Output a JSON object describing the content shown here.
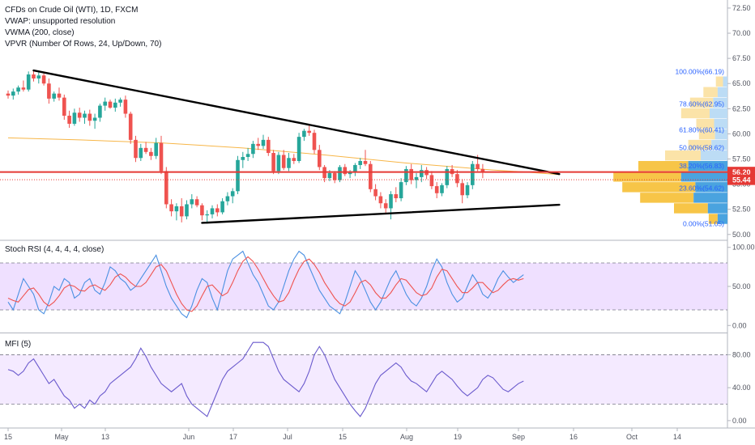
{
  "legend": {
    "title": "CFDs on Crude Oil (WTI), 1D, FXCM",
    "vwap": "VWAP: unsupported resolution",
    "vwma": "VWMA (200, close)",
    "vpvr": "VPVR (Number Of Rows, 24, Up/Down, 70)"
  },
  "indicators": {
    "stoch_title": "Stoch RSI (4, 4, 4, 4, close)",
    "mfi_title": "MFI (5)"
  },
  "colors": {
    "up": "#26a69a",
    "down": "#ef5350",
    "vwma": "#f7b648",
    "trend": "#000000",
    "price_line": "#e53935",
    "fib": "#2962ff",
    "stoch_k": "#4a90e2",
    "stoch_d": "#ef5350",
    "mfi": "#6a5acd",
    "band": "#e9d5ff"
  },
  "price_tags": {
    "current": "56.20",
    "secondary": "55.44"
  },
  "chart_data": [
    {
      "type": "candlestick",
      "title": "CFDs on Crude Oil (WTI), 1D, FXCM",
      "x_ticks": [
        "15",
        "May",
        "13",
        "Jun",
        "17",
        "Jul",
        "15",
        "Aug",
        "19",
        "Sep",
        "16",
        "Oct",
        "14"
      ],
      "y_ticks": [
        "50.00",
        "52.50",
        "55.00",
        "57.50",
        "60.00",
        "62.50",
        "65.00",
        "67.50",
        "70.00",
        "72.50"
      ],
      "ylim": [
        49.5,
        73.3
      ],
      "candles": [
        [
          64.0,
          64.3,
          63.5,
          63.8
        ],
        [
          63.8,
          64.5,
          63.4,
          64.2
        ],
        [
          64.2,
          64.8,
          63.9,
          64.6
        ],
        [
          64.6,
          65.3,
          64.2,
          64.4
        ],
        [
          64.4,
          66.2,
          64.2,
          65.9
        ],
        [
          65.9,
          66.3,
          65.2,
          65.5
        ],
        [
          65.5,
          66.1,
          65.0,
          65.8
        ],
        [
          65.8,
          66.0,
          64.8,
          65.0
        ],
        [
          65.0,
          65.5,
          63.0,
          63.5
        ],
        [
          63.5,
          64.2,
          63.2,
          64.0
        ],
        [
          64.0,
          64.6,
          63.3,
          63.6
        ],
        [
          63.6,
          63.9,
          61.4,
          61.8
        ],
        [
          61.8,
          62.3,
          60.6,
          61.0
        ],
        [
          61.0,
          62.5,
          60.8,
          62.1
        ],
        [
          62.1,
          62.6,
          61.2,
          61.6
        ],
        [
          61.6,
          62.3,
          61.0,
          62.0
        ],
        [
          62.0,
          62.4,
          60.8,
          61.3
        ],
        [
          61.3,
          62.0,
          60.5,
          61.6
        ],
        [
          61.6,
          63.0,
          61.2,
          62.8
        ],
        [
          62.8,
          63.6,
          62.3,
          63.2
        ],
        [
          63.2,
          63.4,
          62.5,
          62.6
        ],
        [
          62.6,
          63.5,
          62.2,
          63.1
        ],
        [
          63.1,
          63.6,
          62.7,
          63.4
        ],
        [
          63.4,
          63.8,
          61.6,
          62.0
        ],
        [
          62.0,
          62.2,
          59.0,
          59.4
        ],
        [
          59.4,
          59.8,
          57.2,
          57.6
        ],
        [
          57.6,
          59.0,
          57.3,
          58.6
        ],
        [
          58.6,
          59.2,
          58.0,
          58.2
        ],
        [
          58.2,
          58.6,
          57.4,
          57.8
        ],
        [
          57.8,
          59.6,
          57.5,
          59.1
        ],
        [
          59.1,
          59.8,
          56.0,
          56.3
        ],
        [
          56.3,
          56.7,
          52.6,
          53.0
        ],
        [
          53.0,
          53.5,
          51.8,
          52.3
        ],
        [
          52.3,
          53.1,
          51.4,
          52.8
        ],
        [
          52.8,
          53.6,
          51.2,
          51.8
        ],
        [
          51.8,
          53.4,
          51.5,
          53.0
        ],
        [
          53.0,
          54.0,
          52.6,
          53.5
        ],
        [
          53.5,
          53.8,
          52.7,
          52.9
        ],
        [
          52.9,
          53.1,
          51.4,
          51.9
        ],
        [
          51.9,
          52.4,
          51.1,
          52.0
        ],
        [
          52.0,
          52.9,
          51.6,
          52.6
        ],
        [
          52.6,
          53.0,
          51.8,
          52.2
        ],
        [
          52.2,
          53.6,
          52.0,
          53.3
        ],
        [
          53.3,
          54.2,
          52.9,
          53.8
        ],
        [
          53.8,
          54.6,
          53.1,
          54.3
        ],
        [
          54.3,
          57.8,
          54.0,
          57.4
        ],
        [
          57.4,
          58.2,
          56.6,
          57.7
        ],
        [
          57.7,
          58.6,
          57.3,
          58.0
        ],
        [
          58.0,
          59.3,
          57.6,
          59.0
        ],
        [
          59.0,
          59.6,
          58.4,
          58.8
        ],
        [
          58.8,
          59.9,
          58.5,
          59.4
        ],
        [
          59.4,
          59.7,
          57.8,
          58.1
        ],
        [
          58.1,
          58.4,
          56.0,
          56.3
        ],
        [
          56.3,
          58.2,
          56.0,
          57.9
        ],
        [
          57.9,
          58.4,
          56.4,
          56.6
        ],
        [
          56.6,
          58.1,
          56.3,
          57.6
        ],
        [
          57.6,
          58.0,
          57.0,
          57.3
        ],
        [
          57.3,
          60.1,
          57.1,
          59.7
        ],
        [
          59.7,
          60.5,
          59.3,
          60.3
        ],
        [
          60.3,
          60.9,
          59.8,
          60.1
        ],
        [
          60.1,
          60.4,
          58.0,
          58.4
        ],
        [
          58.4,
          58.9,
          56.4,
          56.7
        ],
        [
          56.7,
          56.9,
          55.2,
          55.6
        ],
        [
          55.6,
          56.4,
          55.3,
          56.1
        ],
        [
          56.1,
          56.3,
          55.1,
          55.4
        ],
        [
          55.4,
          56.9,
          55.2,
          56.7
        ],
        [
          56.7,
          57.0,
          55.8,
          56.0
        ],
        [
          56.0,
          56.4,
          55.6,
          56.2
        ],
        [
          56.2,
          57.1,
          55.8,
          56.9
        ],
        [
          56.9,
          57.6,
          56.5,
          57.3
        ],
        [
          57.3,
          58.4,
          56.8,
          57.0
        ],
        [
          57.0,
          57.3,
          54.2,
          54.5
        ],
        [
          54.5,
          55.0,
          53.4,
          53.8
        ],
        [
          53.8,
          54.2,
          52.6,
          53.1
        ],
        [
          53.1,
          53.5,
          52.0,
          52.6
        ],
        [
          52.6,
          54.3,
          51.5,
          54.0
        ],
        [
          54.0,
          54.7,
          53.2,
          53.6
        ],
        [
          53.6,
          55.6,
          53.3,
          55.2
        ],
        [
          55.2,
          56.8,
          54.9,
          56.5
        ],
        [
          56.5,
          57.0,
          55.0,
          55.4
        ],
        [
          55.4,
          56.1,
          54.6,
          55.7
        ],
        [
          55.7,
          56.9,
          55.2,
          56.4
        ],
        [
          56.4,
          56.7,
          55.5,
          55.9
        ],
        [
          55.9,
          56.3,
          54.5,
          54.8
        ],
        [
          54.8,
          55.2,
          53.6,
          54.1
        ],
        [
          54.1,
          55.1,
          53.8,
          54.9
        ],
        [
          54.9,
          56.8,
          54.6,
          56.5
        ],
        [
          56.5,
          56.9,
          55.7,
          56.0
        ],
        [
          56.0,
          56.4,
          54.7,
          55.1
        ],
        [
          55.1,
          55.5,
          53.1,
          53.9
        ],
        [
          53.9,
          55.2,
          53.6,
          54.9
        ],
        [
          54.9,
          57.3,
          54.5,
          57.0
        ],
        [
          57.0,
          57.9,
          56.3,
          56.5
        ],
        [
          56.5,
          57.0,
          55.6,
          56.2
        ]
      ],
      "vwma": [
        [
          0,
          59.6
        ],
        [
          14,
          59.4
        ],
        [
          30,
          59.1
        ],
        [
          46,
          58.6
        ],
        [
          62,
          57.9
        ],
        [
          78,
          57.1
        ],
        [
          95,
          56.4
        ],
        [
          100,
          56.25
        ],
        [
          108,
          55.95
        ]
      ],
      "trendlines": [
        {
          "from": [
            5,
            66.3
          ],
          "to": [
            108,
            56.0
          ]
        },
        {
          "from": [
            38,
            51.15
          ],
          "to": [
            108,
            52.95
          ]
        }
      ],
      "price_lines": [
        56.2,
        55.44
      ],
      "fib_levels": [
        {
          "label": "100.00%(66.19)",
          "value": 66.19
        },
        {
          "label": "78.60%(62.95)",
          "value": 62.95
        },
        {
          "label": "61.80%(60.41)",
          "value": 60.41
        },
        {
          "label": "50.00%(58.62)",
          "value": 58.62
        },
        {
          "label": "38.20%(56.83)",
          "value": 56.83
        },
        {
          "label": "23.60%(54.62)",
          "value": 54.62
        },
        {
          "label": "0.00%(51.05)",
          "value": 51.05
        }
      ],
      "volume_profile": [
        {
          "price": 51.55,
          "up": 0.1,
          "down": 0.11
        },
        {
          "price": 52.6,
          "up": 0.38,
          "down": 0.22
        },
        {
          "price": 53.65,
          "up": 0.6,
          "down": 0.38
        },
        {
          "price": 54.7,
          "up": 0.82,
          "down": 0.36
        },
        {
          "price": 55.75,
          "up": 0.76,
          "down": 0.52
        },
        {
          "price": 56.8,
          "up": 0.56,
          "down": 0.44
        },
        {
          "price": 57.85,
          "up": 0.4,
          "down": 0.3
        },
        {
          "price": 58.9,
          "up": 0.26,
          "down": 0.18
        },
        {
          "price": 59.95,
          "up": 0.18,
          "down": 0.14
        },
        {
          "price": 61.0,
          "up": 0.2,
          "down": 0.15
        },
        {
          "price": 62.05,
          "up": 0.32,
          "down": 0.2
        },
        {
          "price": 63.1,
          "up": 0.26,
          "down": 0.16
        },
        {
          "price": 64.15,
          "up": 0.16,
          "down": 0.11
        },
        {
          "price": 65.2,
          "up": 0.08,
          "down": 0.05
        }
      ]
    },
    {
      "type": "line",
      "title": "Stoch RSI (4, 4, 4, 4, close)",
      "y_ticks": [
        "0.00",
        "50.00",
        "100.00"
      ],
      "ylim": [
        -8,
        108
      ],
      "bands": [
        20,
        80
      ],
      "series": [
        {
          "name": "K",
          "values": [
            30,
            20,
            40,
            60,
            50,
            40,
            20,
            15,
            30,
            50,
            45,
            60,
            55,
            35,
            40,
            55,
            60,
            45,
            40,
            55,
            75,
            70,
            60,
            55,
            45,
            50,
            60,
            70,
            80,
            90,
            70,
            50,
            35,
            25,
            15,
            10,
            25,
            45,
            60,
            55,
            35,
            20,
            45,
            70,
            85,
            90,
            95,
            80,
            65,
            55,
            40,
            25,
            20,
            30,
            50,
            70,
            85,
            95,
            90,
            75,
            60,
            45,
            35,
            25,
            20,
            15,
            30,
            50,
            70,
            60,
            45,
            30,
            20,
            30,
            45,
            60,
            70,
            55,
            40,
            30,
            25,
            35,
            50,
            70,
            85,
            75,
            55,
            40,
            30,
            35,
            50,
            65,
            55,
            40,
            35,
            45,
            60,
            70,
            62,
            55,
            60,
            65
          ]
        },
        {
          "name": "D",
          "values": [
            35,
            32,
            30,
            38,
            46,
            48,
            40,
            30,
            25,
            30,
            38,
            48,
            52,
            50,
            45,
            44,
            50,
            52,
            48,
            45,
            52,
            62,
            66,
            62,
            55,
            50,
            50,
            55,
            65,
            75,
            78,
            70,
            55,
            40,
            28,
            20,
            18,
            25,
            38,
            50,
            52,
            45,
            38,
            42,
            55,
            70,
            82,
            88,
            82,
            72,
            60,
            48,
            38,
            30,
            32,
            42,
            58,
            72,
            82,
            85,
            78,
            68,
            55,
            45,
            35,
            28,
            25,
            30,
            42,
            55,
            58,
            52,
            42,
            35,
            35,
            42,
            52,
            60,
            58,
            50,
            42,
            38,
            40,
            48,
            62,
            72,
            70,
            60,
            50,
            42,
            42,
            48,
            55,
            55,
            48,
            42,
            45,
            52,
            58,
            60,
            58,
            60
          ]
        }
      ]
    },
    {
      "type": "line",
      "title": "MFI (5)",
      "y_ticks": [
        "0.00",
        "40.00",
        "80.00"
      ],
      "ylim": [
        -8,
        105
      ],
      "bands": [
        20,
        80
      ],
      "series": [
        {
          "name": "MFI",
          "values": [
            62,
            60,
            55,
            60,
            70,
            75,
            65,
            55,
            45,
            50,
            40,
            30,
            25,
            15,
            20,
            15,
            25,
            20,
            30,
            35,
            45,
            50,
            55,
            60,
            65,
            75,
            88,
            78,
            65,
            55,
            45,
            40,
            35,
            40,
            45,
            30,
            20,
            15,
            10,
            5,
            20,
            35,
            50,
            60,
            65,
            70,
            75,
            85,
            95,
            95,
            95,
            90,
            75,
            60,
            50,
            45,
            40,
            35,
            45,
            60,
            80,
            90,
            80,
            65,
            50,
            40,
            30,
            20,
            12,
            5,
            15,
            30,
            45,
            55,
            60,
            65,
            70,
            65,
            55,
            48,
            45,
            40,
            35,
            45,
            55,
            60,
            55,
            50,
            42,
            35,
            30,
            35,
            40,
            50,
            55,
            52,
            45,
            38,
            35,
            40,
            45,
            48
          ]
        }
      ]
    }
  ]
}
